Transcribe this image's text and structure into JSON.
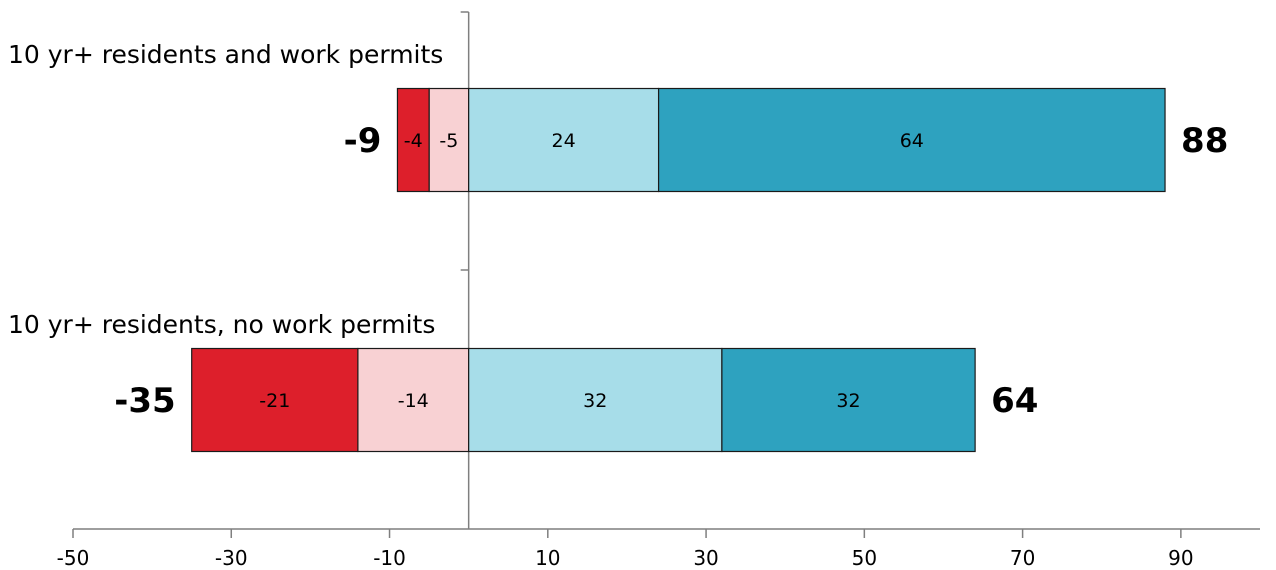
{
  "chart_data": {
    "type": "bar",
    "orientation": "horizontal",
    "stacked": true,
    "diverging": true,
    "categories": [
      "10 yr+ residents and work permits",
      "10 yr+ residents, no work permits"
    ],
    "series": [
      {
        "values": [
          -4,
          -21
        ],
        "color": "#dd1f2b"
      },
      {
        "values": [
          -5,
          -14
        ],
        "color": "#f8d1d3"
      },
      {
        "values": [
          24,
          32
        ],
        "color": "#a7dde9"
      },
      {
        "values": [
          64,
          32
        ],
        "color": "#2ea2bf"
      }
    ],
    "negative_totals": [
      -9,
      -35
    ],
    "positive_totals": [
      88,
      64
    ],
    "x_ticks": [
      -50,
      -30,
      -10,
      10,
      30,
      50,
      70,
      90
    ],
    "xlim": [
      -50,
      100
    ],
    "grid": false,
    "title": "",
    "xlabel": "",
    "ylabel": ""
  }
}
